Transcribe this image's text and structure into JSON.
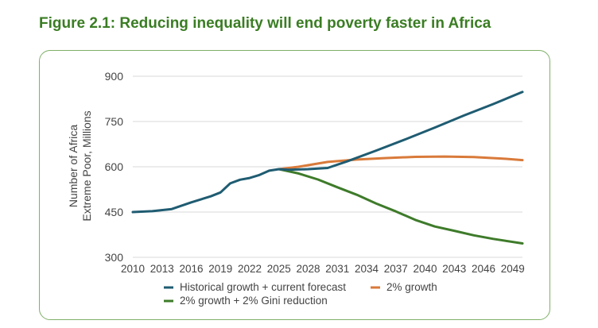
{
  "figure": {
    "title": "Figure 2.1: Reducing inequality will end poverty faster in Africa"
  },
  "colors": {
    "title": "#3a7d23",
    "frame": "#7fb069",
    "historical": "#1f5c72",
    "growth2": "#d97a3a",
    "gini": "#3e7b2a",
    "grid": "#d9d9d9"
  },
  "chart_data": {
    "type": "line",
    "ylabel_line1": "Number of Africa",
    "ylabel_line2": "Extreme Poor, Millions",
    "xlabel": "",
    "ylim": [
      300,
      900
    ],
    "yticks": [
      300,
      450,
      600,
      750,
      900
    ],
    "xlim": [
      2010,
      2050
    ],
    "xticks": [
      2010,
      2013,
      2016,
      2019,
      2022,
      2025,
      2028,
      2031,
      2034,
      2037,
      2040,
      2043,
      2046,
      2049
    ],
    "grid": true,
    "legend_position": "bottom",
    "series": [
      {
        "name": "Historical growth + current forecast",
        "color": "#1f5c72",
        "x": [
          2010,
          2012,
          2014,
          2016,
          2018,
          2019,
          2020,
          2021,
          2022,
          2023,
          2024,
          2025,
          2026,
          2028,
          2030,
          2032,
          2035,
          2038,
          2041,
          2044,
          2047,
          2050
        ],
        "y": [
          450,
          453,
          460,
          482,
          502,
          515,
          545,
          557,
          563,
          573,
          587,
          592,
          590,
          592,
          596,
          618,
          654,
          691,
          730,
          770,
          808,
          848
        ]
      },
      {
        "name": "2% growth",
        "color": "#d97a3a",
        "x": [
          2025,
          2027,
          2030,
          2033,
          2036,
          2039,
          2042,
          2045,
          2048,
          2050
        ],
        "y": [
          592,
          600,
          616,
          624,
          629,
          633,
          634,
          632,
          627,
          622
        ]
      },
      {
        "name": "2% growth + 2% Gini reduction",
        "color": "#3e7b2a",
        "x": [
          2025,
          2027,
          2029,
          2031,
          2033,
          2035,
          2037,
          2039,
          2041,
          2043,
          2045,
          2047,
          2050
        ],
        "y": [
          592,
          578,
          558,
          532,
          507,
          478,
          452,
          424,
          402,
          388,
          373,
          361,
          346
        ]
      }
    ]
  }
}
